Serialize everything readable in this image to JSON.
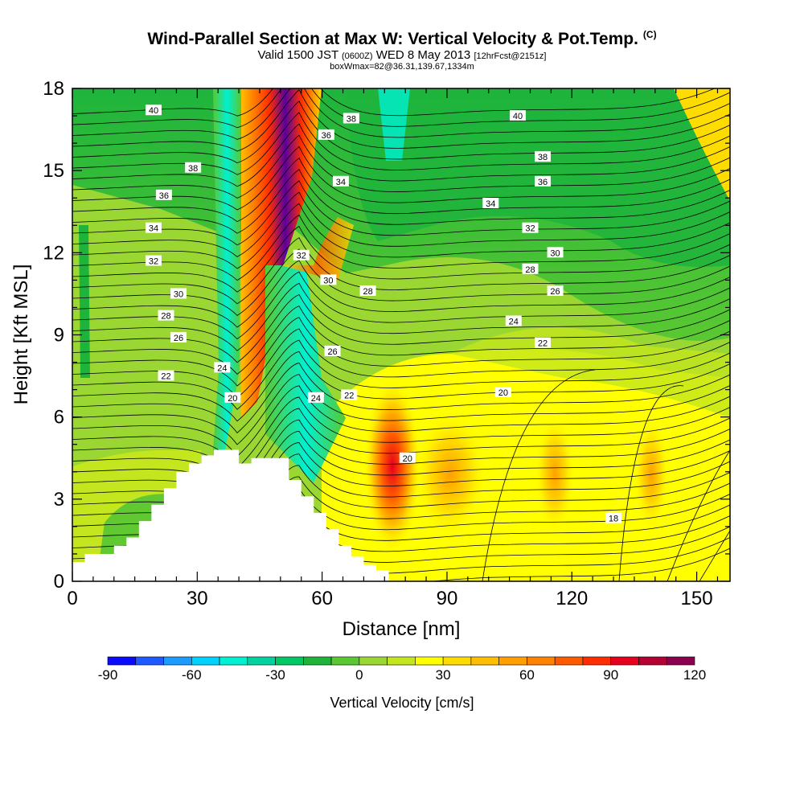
{
  "header": {
    "title": "Wind-Parallel Section at Max W: Vertical Velocity & Pot.Temp.",
    "copyright": "(C)",
    "valid_prefix": "Valid 1500 JST",
    "valid_utc": "(0600Z)",
    "valid_date": "WED 8 May 2013",
    "forecast": "[12hrFcst@2151z]",
    "box_info": "boxWmax=82@36.31,139.67,1334m"
  },
  "chart_data": {
    "type": "heatmap",
    "xlabel": "Distance [nm]",
    "ylabel": "Height [Kft MSL]",
    "xlim": [
      0,
      158
    ],
    "ylim": [
      0,
      18
    ],
    "x_ticks": [
      0,
      30,
      60,
      90,
      120,
      150
    ],
    "y_ticks": [
      0,
      3,
      6,
      9,
      12,
      15,
      18
    ],
    "colorbar": {
      "label": "Vertical Velocity [cm/s]",
      "ticks": [
        -90,
        -60,
        -30,
        0,
        30,
        60,
        90,
        120
      ],
      "levels": [
        -90,
        -80,
        -70,
        -60,
        -50,
        -40,
        -30,
        -20,
        -10,
        0,
        10,
        20,
        30,
        40,
        50,
        60,
        70,
        80,
        90,
        100,
        110,
        120
      ],
      "colors": [
        "#0a0aff",
        "#1e5aff",
        "#1e9bff",
        "#00d2ff",
        "#00f0d2",
        "#00d2a0",
        "#00c864",
        "#1eb43c",
        "#5ac832",
        "#9bd732",
        "#c3e61e",
        "#ffff00",
        "#ffdc00",
        "#ffbe00",
        "#ffa000",
        "#ff8200",
        "#ff5a00",
        "#ff2d00",
        "#e6001e",
        "#b40032",
        "#8c0050",
        "#5a00a0"
      ]
    },
    "terrain_kft": [
      [
        0,
        0.7
      ],
      [
        3,
        0.7
      ],
      [
        3,
        1.0
      ],
      [
        10,
        1.0
      ],
      [
        10,
        1.3
      ],
      [
        13,
        1.3
      ],
      [
        13,
        1.6
      ],
      [
        16,
        1.6
      ],
      [
        16,
        2.2
      ],
      [
        19,
        2.2
      ],
      [
        19,
        2.8
      ],
      [
        22,
        2.8
      ],
      [
        22,
        3.4
      ],
      [
        25,
        3.4
      ],
      [
        25,
        4.0
      ],
      [
        28,
        4.0
      ],
      [
        28,
        4.3
      ],
      [
        31,
        4.3
      ],
      [
        31,
        4.6
      ],
      [
        34,
        4.6
      ],
      [
        34,
        4.8
      ],
      [
        40,
        4.8
      ],
      [
        40,
        4.3
      ],
      [
        43,
        4.3
      ],
      [
        43,
        4.5
      ],
      [
        52,
        4.5
      ],
      [
        52,
        3.7
      ],
      [
        55,
        3.7
      ],
      [
        55,
        3.1
      ],
      [
        58,
        3.1
      ],
      [
        58,
        2.5
      ],
      [
        61,
        2.5
      ],
      [
        61,
        1.9
      ],
      [
        64,
        1.9
      ],
      [
        64,
        1.3
      ],
      [
        67,
        1.3
      ],
      [
        67,
        0.9
      ],
      [
        70,
        0.9
      ],
      [
        70,
        0.6
      ],
      [
        73,
        0.6
      ],
      [
        73,
        0.4
      ],
      [
        76,
        0.4
      ],
      [
        76,
        0
      ]
    ],
    "theta_contour_labels": [
      {
        "text": "40",
        "x": 19.5,
        "y": 17.2
      },
      {
        "text": "38",
        "x": 29,
        "y": 15.1
      },
      {
        "text": "36",
        "x": 22,
        "y": 14.1
      },
      {
        "text": "34",
        "x": 19.5,
        "y": 12.9
      },
      {
        "text": "32",
        "x": 19.5,
        "y": 11.7
      },
      {
        "text": "30",
        "x": 25.5,
        "y": 10.5
      },
      {
        "text": "28",
        "x": 22.5,
        "y": 9.7
      },
      {
        "text": "26",
        "x": 25.5,
        "y": 8.9
      },
      {
        "text": "24",
        "x": 36,
        "y": 7.8
      },
      {
        "text": "22",
        "x": 22.5,
        "y": 7.5
      },
      {
        "text": "20",
        "x": 38.5,
        "y": 6.7
      },
      {
        "text": "38",
        "x": 67,
        "y": 16.9
      },
      {
        "text": "36",
        "x": 61,
        "y": 16.3
      },
      {
        "text": "34",
        "x": 64.5,
        "y": 14.6
      },
      {
        "text": "32",
        "x": 55,
        "y": 11.9
      },
      {
        "text": "30",
        "x": 61.5,
        "y": 11.0
      },
      {
        "text": "28",
        "x": 71,
        "y": 10.6
      },
      {
        "text": "26",
        "x": 62.5,
        "y": 8.4
      },
      {
        "text": "24",
        "x": 58.5,
        "y": 6.7
      },
      {
        "text": "22",
        "x": 66.5,
        "y": 6.8
      },
      {
        "text": "20",
        "x": 80.5,
        "y": 4.5
      },
      {
        "text": "40",
        "x": 107,
        "y": 17.0
      },
      {
        "text": "38",
        "x": 113,
        "y": 15.5
      },
      {
        "text": "36",
        "x": 113,
        "y": 14.6
      },
      {
        "text": "34",
        "x": 100.5,
        "y": 13.8
      },
      {
        "text": "32",
        "x": 110,
        "y": 12.9
      },
      {
        "text": "30",
        "x": 116,
        "y": 12.0
      },
      {
        "text": "28",
        "x": 110,
        "y": 11.4
      },
      {
        "text": "26",
        "x": 116,
        "y": 10.6
      },
      {
        "text": "24",
        "x": 106,
        "y": 9.5
      },
      {
        "text": "22",
        "x": 113,
        "y": 8.7
      },
      {
        "text": "20",
        "x": 103.5,
        "y": 6.9
      },
      {
        "text": "18",
        "x": 130,
        "y": 2.3
      }
    ]
  }
}
